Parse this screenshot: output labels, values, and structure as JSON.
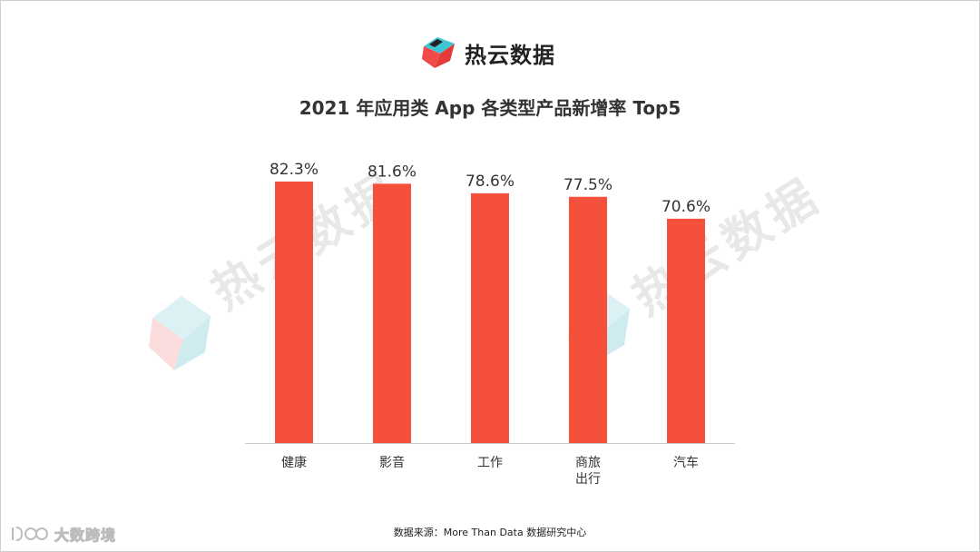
{
  "brand": {
    "name": "热云数据",
    "logo_icon": "reyun-cube-logo-icon"
  },
  "watermark": {
    "text": "热云数据",
    "icon": "reyun-cube-watermark-icon"
  },
  "footer": {
    "source": "数据来源：More Than Data 数据研究中心",
    "corner_logo_text": "大数跨境",
    "corner_logo_icon": "dashujk-logo-icon"
  },
  "colors": {
    "bar": "#f5503c",
    "text": "#333333",
    "axis": "#cccccc"
  },
  "chart_data": {
    "type": "bar",
    "title": "2021 年应用类 App 各类型产品新增率 Top5",
    "categories": [
      "健康",
      "影音",
      "工作",
      "商旅\n出行",
      "汽车"
    ],
    "values": [
      82.3,
      81.6,
      78.6,
      77.5,
      70.6
    ],
    "value_labels": [
      "82.3%",
      "81.6%",
      "78.6%",
      "77.5%",
      "70.6%"
    ],
    "ylim": [
      0,
      100
    ],
    "xlabel": "",
    "ylabel": "",
    "grid": false,
    "legend": "none"
  }
}
